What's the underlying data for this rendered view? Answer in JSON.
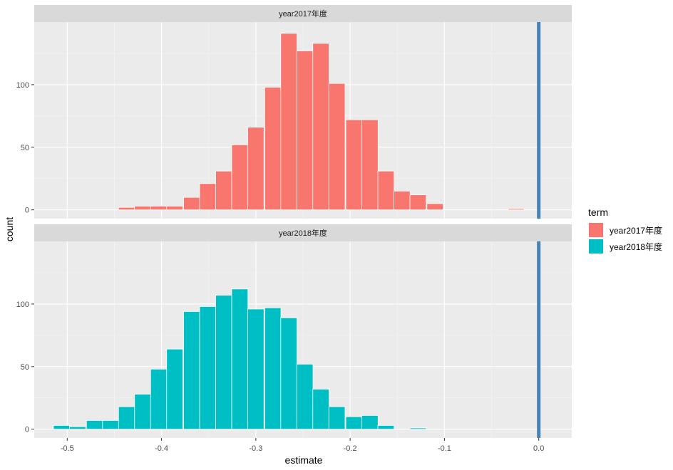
{
  "chart_data": {
    "type": "bar",
    "subtype": "faceted-histogram",
    "xlabel": "estimate",
    "ylabel": "count",
    "xlim": [
      -0.535,
      0.035
    ],
    "ylim": [
      -7,
      150
    ],
    "x_ticks": [
      -0.5,
      -0.4,
      -0.3,
      -0.2,
      -0.1,
      0.0
    ],
    "x_tick_labels": [
      "-0.5",
      "-0.4",
      "-0.3",
      "-0.2",
      "-0.1",
      "0.0"
    ],
    "y_ticks": [
      0,
      50,
      100
    ],
    "y_tick_labels": [
      "0",
      "50",
      "100"
    ],
    "bin_width": 0.0172,
    "reference_line": {
      "x": 0.0,
      "color": "#4682B4"
    },
    "legend": {
      "title": "term",
      "placement": "right",
      "entries": [
        {
          "label": "year2017年度",
          "color": "#F8766D"
        },
        {
          "label": "year2018年度",
          "color": "#00BFC4"
        }
      ]
    },
    "facets": [
      {
        "label": "year2017年度",
        "color": "#F8766D",
        "bins": [
          {
            "x": -0.437,
            "count": 2
          },
          {
            "x": -0.42,
            "count": 3
          },
          {
            "x": -0.403,
            "count": 3
          },
          {
            "x": -0.386,
            "count": 3
          },
          {
            "x": -0.368,
            "count": 10
          },
          {
            "x": -0.351,
            "count": 21
          },
          {
            "x": -0.334,
            "count": 31
          },
          {
            "x": -0.317,
            "count": 52
          },
          {
            "x": -0.3,
            "count": 66
          },
          {
            "x": -0.282,
            "count": 98
          },
          {
            "x": -0.265,
            "count": 141
          },
          {
            "x": -0.248,
            "count": 127
          },
          {
            "x": -0.231,
            "count": 133
          },
          {
            "x": -0.214,
            "count": 101
          },
          {
            "x": -0.196,
            "count": 72
          },
          {
            "x": -0.179,
            "count": 72
          },
          {
            "x": -0.162,
            "count": 31
          },
          {
            "x": -0.145,
            "count": 15
          },
          {
            "x": -0.128,
            "count": 12
          },
          {
            "x": -0.11,
            "count": 5
          },
          {
            "x": -0.093,
            "count": 0
          },
          {
            "x": -0.076,
            "count": 0
          },
          {
            "x": -0.059,
            "count": 0
          },
          {
            "x": -0.042,
            "count": 0
          },
          {
            "x": -0.024,
            "count": 1
          }
        ]
      },
      {
        "label": "year2018年度",
        "color": "#00BFC4",
        "bins": [
          {
            "x": -0.506,
            "count": 3
          },
          {
            "x": -0.489,
            "count": 2
          },
          {
            "x": -0.471,
            "count": 7
          },
          {
            "x": -0.454,
            "count": 7
          },
          {
            "x": -0.437,
            "count": 18
          },
          {
            "x": -0.42,
            "count": 28
          },
          {
            "x": -0.403,
            "count": 48
          },
          {
            "x": -0.386,
            "count": 64
          },
          {
            "x": -0.368,
            "count": 94
          },
          {
            "x": -0.351,
            "count": 98
          },
          {
            "x": -0.334,
            "count": 107
          },
          {
            "x": -0.317,
            "count": 112
          },
          {
            "x": -0.3,
            "count": 96
          },
          {
            "x": -0.282,
            "count": 97
          },
          {
            "x": -0.265,
            "count": 89
          },
          {
            "x": -0.248,
            "count": 52
          },
          {
            "x": -0.231,
            "count": 32
          },
          {
            "x": -0.214,
            "count": 18
          },
          {
            "x": -0.196,
            "count": 10
          },
          {
            "x": -0.179,
            "count": 11
          },
          {
            "x": -0.162,
            "count": 3
          },
          {
            "x": -0.145,
            "count": 0
          },
          {
            "x": -0.128,
            "count": 1
          }
        ]
      }
    ]
  }
}
